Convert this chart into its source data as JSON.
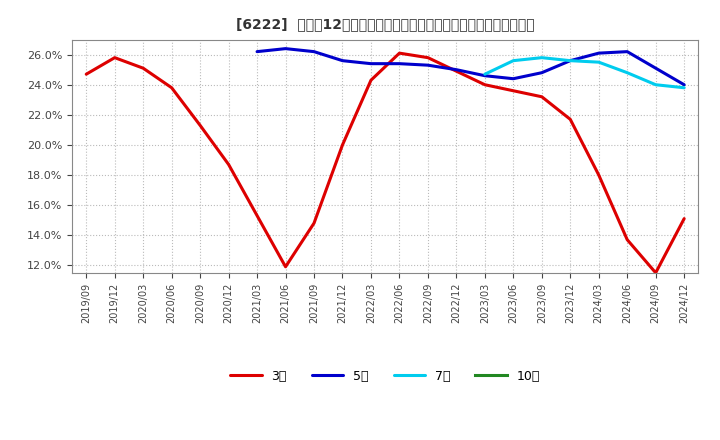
{
  "title": "[6222]  売上高12か月移動合計の対前年同期増減率の標準偏差の推移",
  "background_color": "#ffffff",
  "plot_background": "#ffffff",
  "x_labels": [
    "2019/09",
    "2019/12",
    "2020/03",
    "2020/06",
    "2020/09",
    "2020/12",
    "2021/03",
    "2021/06",
    "2021/09",
    "2021/12",
    "2022/03",
    "2022/06",
    "2022/09",
    "2022/12",
    "2023/03",
    "2023/06",
    "2023/09",
    "2023/12",
    "2024/03",
    "2024/06",
    "2024/09",
    "2024/12"
  ],
  "series": [
    {
      "key": "3year",
      "color": "#dd0000",
      "label": "3年",
      "values": [
        0.247,
        0.258,
        0.251,
        0.238,
        0.213,
        0.187,
        0.153,
        0.119,
        0.148,
        0.2,
        0.243,
        0.261,
        0.258,
        0.249,
        0.24,
        0.236,
        0.232,
        0.217,
        0.18,
        0.137,
        0.115,
        0.151
      ]
    },
    {
      "key": "5year",
      "color": "#0000cc",
      "label": "5年",
      "values": [
        null,
        null,
        null,
        null,
        null,
        null,
        0.262,
        0.264,
        0.262,
        0.256,
        0.254,
        0.254,
        0.253,
        0.25,
        0.246,
        0.244,
        0.248,
        0.256,
        0.261,
        0.262,
        0.251,
        0.24
      ]
    },
    {
      "key": "7year",
      "color": "#00ccee",
      "label": "7年",
      "values": [
        null,
        null,
        null,
        null,
        null,
        null,
        null,
        null,
        null,
        null,
        null,
        null,
        null,
        null,
        0.247,
        0.256,
        0.258,
        0.256,
        0.255,
        0.248,
        0.24,
        0.238
      ]
    },
    {
      "key": "10year",
      "color": "#228822",
      "label": "10年",
      "values": [
        null,
        null,
        null,
        null,
        null,
        null,
        null,
        null,
        null,
        null,
        null,
        null,
        null,
        null,
        null,
        null,
        null,
        null,
        null,
        null,
        null,
        null
      ]
    }
  ],
  "ylim": [
    0.115,
    0.27
  ],
  "yticks": [
    0.12,
    0.14,
    0.16,
    0.18,
    0.2,
    0.22,
    0.24,
    0.26
  ],
  "grid_color": "#bbbbbb",
  "line_width": 2.2
}
